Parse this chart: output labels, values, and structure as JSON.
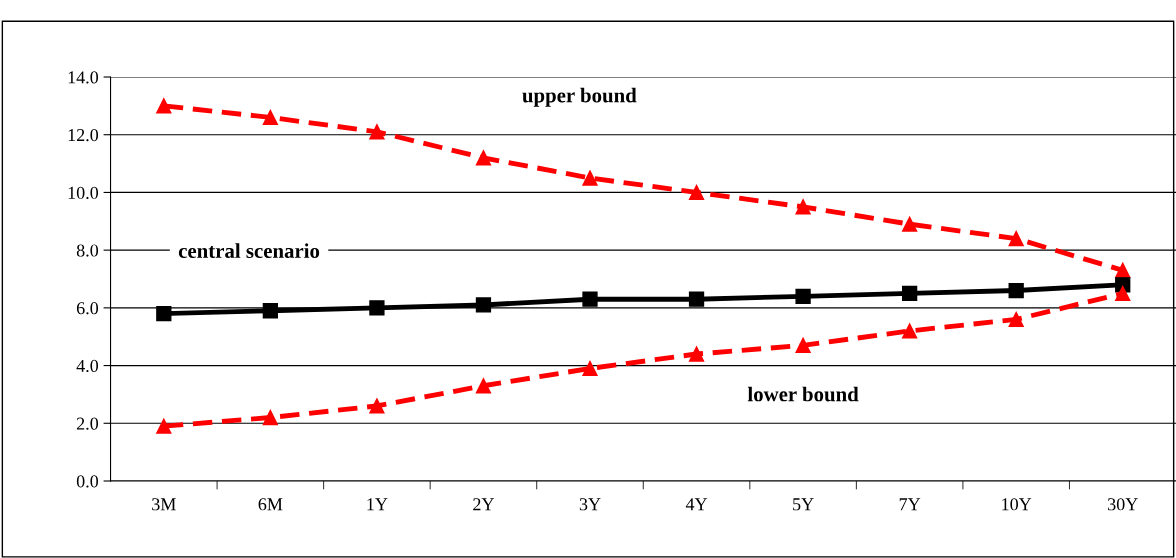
{
  "chart_data": {
    "type": "line",
    "categories": [
      "3M",
      "6M",
      "1Y",
      "2Y",
      "3Y",
      "4Y",
      "5Y",
      "7Y",
      "10Y",
      "30Y"
    ],
    "series": [
      {
        "name": "upper bound",
        "color": "#ff0000",
        "marker": "triangle",
        "line_style": "dashed",
        "values": [
          13.0,
          12.6,
          12.1,
          11.2,
          10.5,
          10.0,
          9.5,
          8.9,
          8.4,
          7.3
        ]
      },
      {
        "name": "central scenario",
        "color": "#000000",
        "marker": "square",
        "line_style": "solid",
        "values": [
          5.8,
          5.9,
          6.0,
          6.1,
          6.3,
          6.3,
          6.4,
          6.5,
          6.6,
          6.8
        ]
      },
      {
        "name": "lower bound",
        "color": "#ff0000",
        "marker": "triangle",
        "line_style": "dashed",
        "values": [
          1.9,
          2.2,
          2.6,
          3.3,
          3.9,
          4.4,
          4.7,
          5.2,
          5.6,
          6.5
        ]
      }
    ],
    "ylim": [
      0,
      14
    ],
    "yticks": [
      {
        "value": 0,
        "label": "0.0"
      },
      {
        "value": 2,
        "label": "2.0"
      },
      {
        "value": 4,
        "label": "4.0"
      },
      {
        "value": 6,
        "label": "6.0"
      },
      {
        "value": 8,
        "label": "8.0"
      },
      {
        "value": 10,
        "label": "10.0"
      },
      {
        "value": 12,
        "label": "12.0"
      },
      {
        "value": 14,
        "label": "14.0"
      }
    ],
    "grid": "y",
    "legend": false
  }
}
